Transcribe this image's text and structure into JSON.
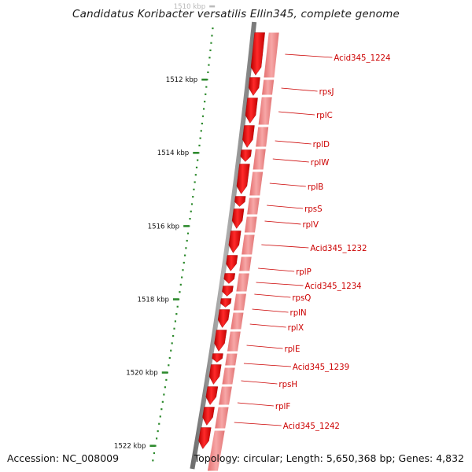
{
  "title": "Candidatus Koribacter versatilis Ellin345, complete genome",
  "accession_text": "Accession: NC_008009",
  "summary_text": "Topology: circular; Length: 5,650,368 bp; Genes: 4,832",
  "colors": {
    "gene_forward": "#ee1111",
    "gene_cds_track": "#f08a8a",
    "backbone": "#8c8c8c",
    "tick": "#2d8a2d",
    "label": "#cc0000",
    "kbp_text": "#111111"
  },
  "scale": {
    "unit": "kbp",
    "major_ticks": [
      {
        "kbp": 1510,
        "label": "1510 kbp",
        "faded": true
      },
      {
        "kbp": 1512,
        "label": "1512 kbp"
      },
      {
        "kbp": 1514,
        "label": "1514 kbp"
      },
      {
        "kbp": 1516,
        "label": "1516 kbp"
      },
      {
        "kbp": 1518,
        "label": "1518 kbp"
      },
      {
        "kbp": 1520,
        "label": "1520 kbp"
      },
      {
        "kbp": 1522,
        "label": "1522 kbp"
      }
    ]
  },
  "genes": [
    {
      "name": "Acid345_1224"
    },
    {
      "name": "rpsJ"
    },
    {
      "name": "rplC"
    },
    {
      "name": "rplD"
    },
    {
      "name": "rplW"
    },
    {
      "name": "rplB"
    },
    {
      "name": "rpsS"
    },
    {
      "name": "rplV"
    },
    {
      "name": "Acid345_1232"
    },
    {
      "name": "rplP"
    },
    {
      "name": "Acid345_1234"
    },
    {
      "name": "rpsQ"
    },
    {
      "name": "rplN"
    },
    {
      "name": "rplX"
    },
    {
      "name": "rplE"
    },
    {
      "name": "Acid345_1239"
    },
    {
      "name": "rpsH"
    },
    {
      "name": "rplF"
    },
    {
      "name": "Acid345_1242"
    }
  ]
}
